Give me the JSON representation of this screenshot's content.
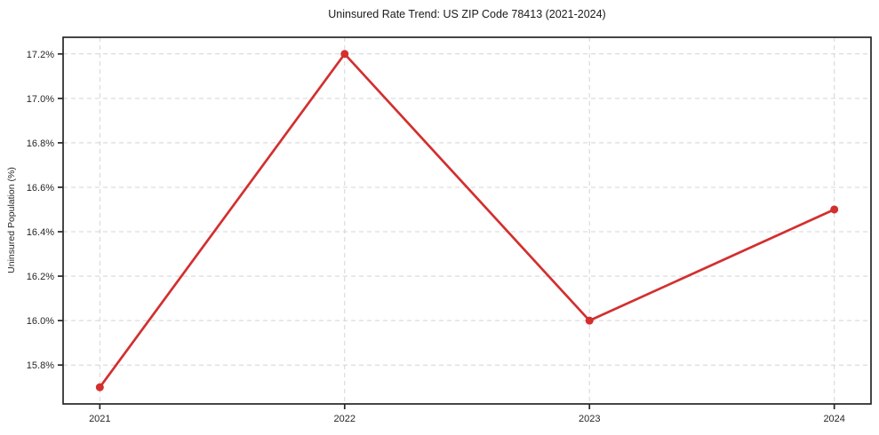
{
  "chart_data": {
    "type": "line",
    "title": "Uninsured Rate Trend: US ZIP Code 78413 (2021-2024)",
    "xlabel": "",
    "ylabel": "Uninsured Population (%)",
    "x": [
      2021,
      2022,
      2023,
      2024
    ],
    "values": [
      15.7,
      17.2,
      16.0,
      16.5
    ],
    "xticks": [
      2021,
      2022,
      2023,
      2024
    ],
    "xtick_labels": [
      "2021",
      "2022",
      "2023",
      "2024"
    ],
    "yticks": [
      15.8,
      16.0,
      16.2,
      16.4,
      16.6,
      16.8,
      17.0,
      17.2
    ],
    "ytick_labels": [
      "15.8%",
      "16.0%",
      "16.2%",
      "16.4%",
      "16.6%",
      "16.8%",
      "17.0%",
      "17.2%"
    ],
    "xlim": [
      2020.85,
      2024.15
    ],
    "ylim": [
      15.625,
      17.275
    ],
    "grid": true,
    "grid_style": "dashed",
    "legend": false,
    "line_color": "#d32f2f",
    "marker": "circle",
    "grid_color": "#d4d4d4",
    "axis_color": "#262626",
    "text_color": "#262626",
    "background": "#ffffff"
  }
}
